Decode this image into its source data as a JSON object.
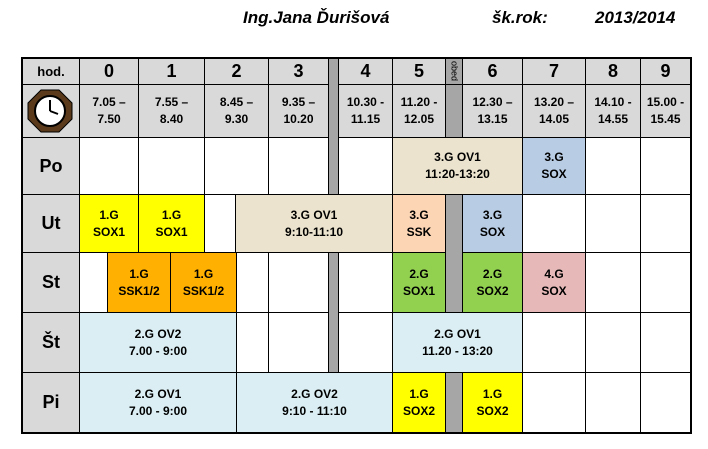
{
  "header": {
    "name": "Ing.Jana Ďurišová",
    "year_label": "šk.rok:",
    "year": "2013/2014"
  },
  "table": {
    "corner": "hod.",
    "break_label": "obed",
    "columns": [
      {
        "hour": "0",
        "time": [
          "7.05 –",
          "7.50"
        ]
      },
      {
        "hour": "1",
        "time": [
          "7.55 –",
          "8.40"
        ]
      },
      {
        "hour": "2",
        "time": [
          "8.45 –",
          "9.30"
        ]
      },
      {
        "hour": "3",
        "time": [
          "9.35 –",
          "10.20"
        ]
      },
      {
        "hour": "4",
        "time": [
          "10.30 -",
          "11.15"
        ]
      },
      {
        "hour": "5",
        "time": [
          "11.20 -",
          "12.05"
        ]
      },
      {
        "hour": "6",
        "time": [
          "12.30 –",
          "13.15"
        ]
      },
      {
        "hour": "7",
        "time": [
          "13.20 –",
          "14.05"
        ]
      },
      {
        "hour": "8",
        "time": [
          "14.10 -",
          "14.55"
        ]
      },
      {
        "hour": "9",
        "time": [
          "15.00 -",
          "15.45"
        ]
      }
    ],
    "days": [
      {
        "label": "Po",
        "lessons": [
          {
            "lines": [
              "3.G OV1",
              "11:20-13:20"
            ],
            "color": "#ebe3cd"
          },
          {
            "lines": [
              "3.G",
              "SOX"
            ],
            "color": "#b8cce4"
          }
        ]
      },
      {
        "label": "Ut",
        "lessons": [
          {
            "lines": [
              "1.G",
              "SOX1"
            ],
            "color": "#ffff00"
          },
          {
            "lines": [
              "1.G",
              "SOX1"
            ],
            "color": "#ffff00"
          },
          {
            "lines": [
              "3.G OV1",
              "9:10-11:10"
            ],
            "color": "#ebe3cd"
          },
          {
            "lines": [
              "3.G",
              "SSK"
            ],
            "color": "#fcd5b4"
          },
          {
            "lines": [
              "3.G",
              "SOX"
            ],
            "color": "#b8cce4"
          }
        ]
      },
      {
        "label": "St",
        "lessons": [
          {
            "lines": [
              "1.G",
              "SSK1/2"
            ],
            "color": "#ffb000"
          },
          {
            "lines": [
              "1.G",
              "SSK1/2"
            ],
            "color": "#ffb000"
          },
          {
            "lines": [
              "2.G",
              "SOX1"
            ],
            "color": "#92d050"
          },
          {
            "lines": [
              "2.G",
              "SOX2"
            ],
            "color": "#92d050"
          },
          {
            "lines": [
              "4.G",
              "SOX"
            ],
            "color": "#e6b9b8"
          }
        ]
      },
      {
        "label": "Št",
        "lessons": [
          {
            "lines": [
              "2.G OV2",
              "7.00 - 9:00"
            ],
            "color": "#daeef3"
          },
          {
            "lines": [
              "2.G OV1",
              "11.20 - 13:20"
            ],
            "color": "#daeef3"
          }
        ]
      },
      {
        "label": "Pi",
        "lessons": [
          {
            "lines": [
              "2.G OV1",
              "7.00 - 9:00"
            ],
            "color": "#daeef3"
          },
          {
            "lines": [
              "2.G OV2",
              "9:10 - 11:10"
            ],
            "color": "#daeef3"
          },
          {
            "lines": [
              "1.G",
              "SOX2"
            ],
            "color": "#ffff00"
          },
          {
            "lines": [
              "1.G",
              "SOX2"
            ],
            "color": "#ffff00"
          }
        ]
      }
    ]
  }
}
